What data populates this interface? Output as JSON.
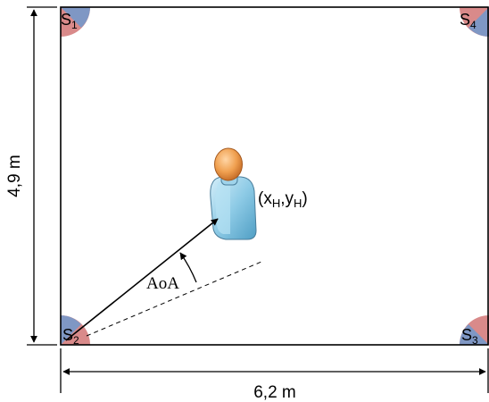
{
  "room": {
    "width_label": "6,2 m",
    "height_label": "4,9 m"
  },
  "sensors": [
    {
      "letter": "S",
      "index": "1"
    },
    {
      "letter": "S",
      "index": "2"
    },
    {
      "letter": "S",
      "index": "3"
    },
    {
      "letter": "S",
      "index": "4"
    }
  ],
  "person": {
    "coord_open": "(x",
    "coord_sub_x": "H",
    "coord_comma": ",y",
    "coord_sub_y": "H",
    "coord_close": ")"
  },
  "angle": {
    "label": "AoA"
  },
  "colors": {
    "sensor_red": "#d98a8a",
    "sensor_blue": "#7f97c4",
    "body_blue": "#8ecbe6",
    "head_orange": "#f0a050"
  },
  "icons": [
    "person-icon",
    "sensor-marker"
  ]
}
